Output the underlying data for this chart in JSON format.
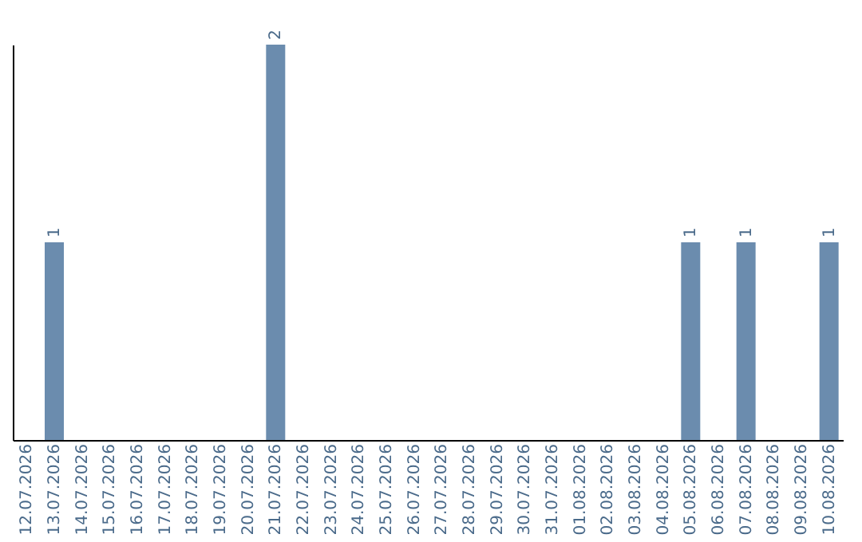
{
  "chart_data": {
    "type": "bar",
    "categories": [
      "12.07.2026",
      "13.07.2026",
      "14.07.2026",
      "15.07.2026",
      "16.07.2026",
      "17.07.2026",
      "18.07.2026",
      "19.07.2026",
      "20.07.2026",
      "21.07.2026",
      "22.07.2026",
      "23.07.2026",
      "24.07.2026",
      "25.07.2026",
      "26.07.2026",
      "27.07.2026",
      "28.07.2026",
      "29.07.2026",
      "30.07.2026",
      "31.07.2026",
      "01.08.2026",
      "02.08.2026",
      "03.08.2026",
      "04.08.2026",
      "05.08.2026",
      "06.08.2026",
      "07.08.2026",
      "08.08.2026",
      "09.08.2026",
      "10.08.2026"
    ],
    "values": [
      0,
      1,
      0,
      0,
      0,
      0,
      0,
      0,
      0,
      2,
      0,
      0,
      0,
      0,
      0,
      0,
      0,
      0,
      0,
      0,
      0,
      0,
      0,
      0,
      1,
      0,
      1,
      0,
      0,
      1
    ],
    "value_labels": [
      null,
      "1",
      null,
      null,
      null,
      null,
      null,
      null,
      null,
      "2",
      null,
      null,
      null,
      null,
      null,
      null,
      null,
      null,
      null,
      null,
      null,
      null,
      null,
      null,
      "1",
      null,
      "1",
      null,
      null,
      "1"
    ],
    "color": "#6b8cae",
    "ylim": [
      0,
      2
    ],
    "tick_labels": "x",
    "grid": false
  }
}
